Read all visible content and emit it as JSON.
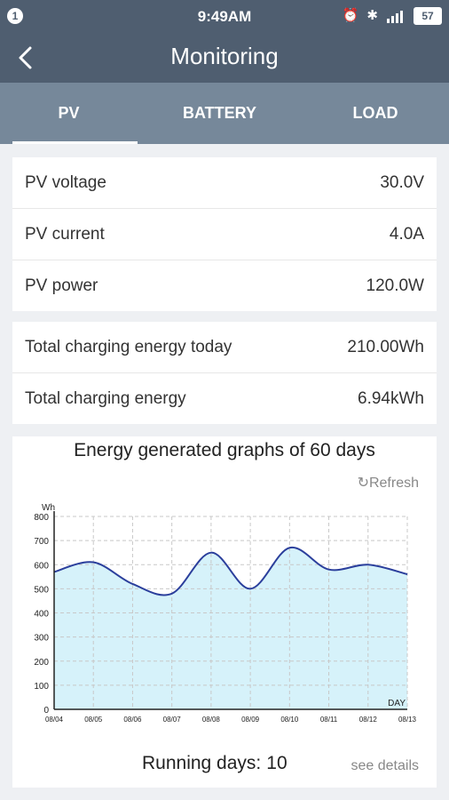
{
  "status_bar": {
    "notification_count": "1",
    "time": "9:49AM",
    "battery": "57",
    "icons": [
      "alarm-icon",
      "bluetooth-icon",
      "signal-icon",
      "battery-icon"
    ]
  },
  "header": {
    "title": "Monitoring",
    "back_icon": "chevron-left-icon"
  },
  "tabs": [
    {
      "label": "PV",
      "active": true
    },
    {
      "label": "BATTERY",
      "active": false
    },
    {
      "label": "LOAD",
      "active": false
    }
  ],
  "pv_metrics": [
    {
      "label": "PV voltage",
      "value": "30.0V"
    },
    {
      "label": "PV current",
      "value": "4.0A"
    },
    {
      "label": "PV power",
      "value": "120.0W"
    }
  ],
  "energy_metrics": [
    {
      "label": "Total charging energy today",
      "value": "210.00Wh"
    },
    {
      "label": "Total charging energy",
      "value": "6.94kWh"
    }
  ],
  "chart_section": {
    "title": "Energy generated graphs of 60 days",
    "refresh_label": "↻Refresh",
    "running_days_label": "Running days:",
    "running_days_value": "10",
    "see_details_label": "see details"
  },
  "chart_data": {
    "type": "area",
    "title": "Energy generated graphs of 60 days",
    "ylabel": "Wh",
    "xlabel": "DAY",
    "x": [
      "08/04",
      "08/05",
      "08/06",
      "08/07",
      "08/08",
      "08/09",
      "08/10",
      "08/11",
      "08/12",
      "08/13"
    ],
    "values": [
      570,
      610,
      520,
      480,
      650,
      500,
      670,
      580,
      600,
      560
    ],
    "ylim": [
      0,
      800
    ],
    "yticks": [
      0,
      100,
      200,
      300,
      400,
      500,
      600,
      700,
      800
    ],
    "grid": true,
    "line_color": "#2b3f9c",
    "fill_color": "#d6f2fa"
  },
  "colors": {
    "header": "#4f5e70",
    "tabs": "#76889a",
    "background": "#eef0f3"
  }
}
